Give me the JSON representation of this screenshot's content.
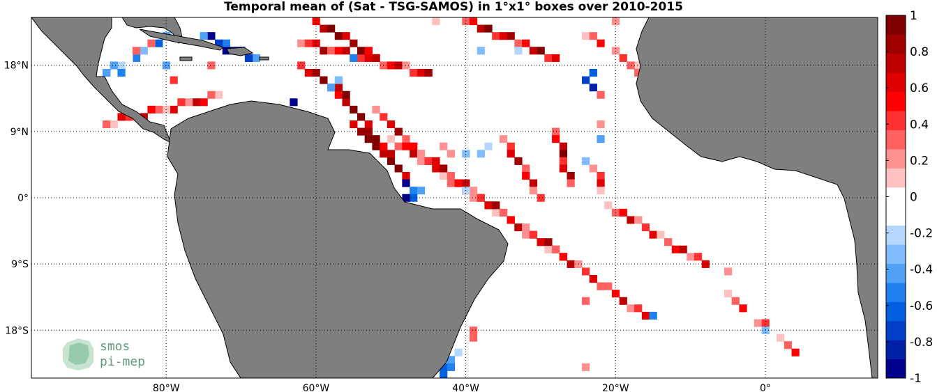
{
  "title": "Temporal mean of (Sat - TSG-SAMOS) in 1°x1° boxes over 2010-2015",
  "map": {
    "lon_range": [
      -98,
      15
    ],
    "lat_range": [
      -24.5,
      24.5
    ],
    "grid": true,
    "land_color": "#7f7f7f",
    "ocean_color": "#ffffff"
  },
  "axes": {
    "x_ticks": [
      {
        "value": -80,
        "label": "80°W"
      },
      {
        "value": -60,
        "label": "60°W"
      },
      {
        "value": -40,
        "label": "40°W"
      },
      {
        "value": -20,
        "label": "20°W"
      },
      {
        "value": 0,
        "label": "0°"
      }
    ],
    "y_ticks": [
      {
        "value": 18,
        "label": "18°N"
      },
      {
        "value": 9,
        "label": "9°N"
      },
      {
        "value": 0,
        "label": "0°"
      },
      {
        "value": -9,
        "label": "9°S"
      },
      {
        "value": -18,
        "label": "18°S"
      }
    ]
  },
  "colorbar": {
    "range": [
      -1,
      1
    ],
    "ticks": [
      "1",
      "0.8",
      "0.6",
      "0.4",
      "0.2",
      "0",
      "-0.2",
      "-0.4",
      "-0.6",
      "-0.8",
      "-1"
    ],
    "colors": [
      "#00008f",
      "#0020a8",
      "#0040c8",
      "#0060e0",
      "#2080f0",
      "#50a0f8",
      "#80bcfb",
      "#b5d6fd",
      "#ffffff",
      "#ffffff",
      "#ffc0c0",
      "#ff9090",
      "#ff6060",
      "#ff3030",
      "#ff0000",
      "#e00000",
      "#c00000",
      "#a00000",
      "#800000"
    ]
  },
  "logo": {
    "line1": "smos",
    "line2": "pi-mep"
  },
  "chart_data": {
    "type": "heatmap",
    "title": "Temporal mean of (Sat - TSG-SAMOS) in 1°x1° boxes over 2010-2015",
    "value_range": [
      -1,
      1
    ],
    "cell_size_deg": 1,
    "tracks": [
      {
        "points": [
          [
            -55,
            10
          ],
          [
            -48,
            3
          ]
        ],
        "value": 0.9
      },
      {
        "points": [
          [
            -57,
            14
          ],
          [
            -50,
            6
          ]
        ],
        "value": 0.85
      },
      {
        "points": [
          [
            -52,
            12
          ],
          [
            -44,
            4
          ]
        ],
        "value": 0.5
      },
      {
        "points": [
          [
            -50,
            8
          ],
          [
            -27,
            -8
          ]
        ],
        "value": 0.45
      },
      {
        "points": [
          [
            -46,
            6
          ],
          [
            -16,
            -16
          ]
        ],
        "value": 0.55
      },
      {
        "points": [
          [
            -21,
            -1
          ],
          [
            -8,
            -9
          ]
        ],
        "value": 0.4
      },
      {
        "points": [
          [
            -6,
            -12
          ],
          [
            5,
            -22
          ]
        ],
        "value": 0.25
      },
      {
        "points": [
          [
            -35,
            8
          ],
          [
            -30,
            0
          ]
        ],
        "value": 0.5
      },
      {
        "points": [
          [
            -28,
            9
          ],
          [
            -26,
            2
          ]
        ],
        "value": 0.6
      },
      {
        "points": [
          [
            -23,
            5
          ],
          [
            -22,
            1
          ]
        ],
        "value": 0.3
      },
      {
        "points": [
          [
            -38,
            -5
          ],
          [
            -41,
            -14
          ]
        ],
        "value": 0.35
      },
      {
        "points": [
          [
            -40,
            -20
          ],
          [
            -44,
            -24
          ]
        ],
        "value": -0.35
      },
      {
        "points": [
          [
            -73,
            14
          ],
          [
            -88,
            10
          ]
        ],
        "value": 0.45
      },
      {
        "points": [
          [
            -62,
            21
          ],
          [
            -45,
            17
          ]
        ],
        "value": 0.5
      },
      {
        "points": [
          [
            -40,
            24
          ],
          [
            -28,
            19
          ]
        ],
        "value": 0.6
      },
      {
        "points": [
          [
            -25,
            23
          ],
          [
            -16,
            17
          ]
        ],
        "value": 0.2
      },
      {
        "points": [
          [
            -60,
            24
          ],
          [
            -52,
            19
          ]
        ],
        "value": 0.8
      },
      {
        "points": [
          [
            -68,
            19
          ],
          [
            -75,
            22
          ]
        ],
        "value": -0.7
      },
      {
        "points": [
          [
            -78,
            23
          ],
          [
            -88,
            17
          ]
        ],
        "value": -0.3
      },
      {
        "points": [
          [
            -62,
            18
          ],
          [
            -56,
            14
          ]
        ],
        "value": 0.7
      }
    ],
    "cells": [
      {
        "lon": -48,
        "lat": 2,
        "value": -0.9
      },
      {
        "lon": -47,
        "lat": 1,
        "value": -0.5
      },
      {
        "lon": -47,
        "lat": 0,
        "value": -0.6
      },
      {
        "lon": -48,
        "lat": 0,
        "value": -0.95
      },
      {
        "lon": -46,
        "lat": 1,
        "value": -0.4
      },
      {
        "lon": -24,
        "lat": 16,
        "value": -0.7
      },
      {
        "lon": -23,
        "lat": 15,
        "value": -0.8
      },
      {
        "lon": -23,
        "lat": 17,
        "value": -0.6
      },
      {
        "lon": -15,
        "lat": -16,
        "value": -0.55
      },
      {
        "lon": 0,
        "lat": -18,
        "value": -0.3
      },
      {
        "lon": -38,
        "lat": 6,
        "value": -0.3
      },
      {
        "lon": -37,
        "lat": 7,
        "value": -0.2
      },
      {
        "lon": -63,
        "lat": 13,
        "value": -0.95
      },
      {
        "lon": -58,
        "lat": 15,
        "value": -0.4
      },
      {
        "lon": -57,
        "lat": 16,
        "value": -0.3
      },
      {
        "lon": -72,
        "lat": 20,
        "value": -0.9
      },
      {
        "lon": -70,
        "lat": 20,
        "value": -0.85
      },
      {
        "lon": -69,
        "lat": 19,
        "value": -0.7
      },
      {
        "lon": -55,
        "lat": 19,
        "value": -0.5
      },
      {
        "lon": -38,
        "lat": 20,
        "value": -0.3
      },
      {
        "lon": -33,
        "lat": 20,
        "value": -0.2
      },
      {
        "lon": -40,
        "lat": 1,
        "value": -0.2
      },
      {
        "lon": -22,
        "lat": 8,
        "value": -0.4
      },
      {
        "lon": -24,
        "lat": 5,
        "value": -0.3
      },
      {
        "lon": -40,
        "lat": 6,
        "value": -0.35
      },
      {
        "lon": -86,
        "lat": 17,
        "value": -0.5
      },
      {
        "lon": -88,
        "lat": 17,
        "value": -0.4
      },
      {
        "lon": -80,
        "lat": 18,
        "value": -0.45
      },
      {
        "lon": -42,
        "lat": -23,
        "value": -0.5
      },
      {
        "lon": -43,
        "lat": -24,
        "value": -0.6
      },
      {
        "lon": -22,
        "lat": -12,
        "value": 0.3
      },
      {
        "lon": -24,
        "lat": -14,
        "value": 0.35
      },
      {
        "lon": -36,
        "lat": -5,
        "value": 0.3
      },
      {
        "lon": -44,
        "lat": -2,
        "value": 0.25
      },
      {
        "lon": -22,
        "lat": 14,
        "value": 0.3
      },
      {
        "lon": -22,
        "lat": 10,
        "value": 0.2
      },
      {
        "lon": -17,
        "lat": 17,
        "value": 0.35
      },
      {
        "lon": -18,
        "lat": 18,
        "value": 0.3
      },
      {
        "lon": -20,
        "lat": 24,
        "value": 0.2
      },
      {
        "lon": -44,
        "lat": 24,
        "value": 0.15
      },
      {
        "lon": -43,
        "lat": 7,
        "value": 0.2
      },
      {
        "lon": -42,
        "lat": 6,
        "value": 0.25
      },
      {
        "lon": -5,
        "lat": -10,
        "value": 0.2
      },
      {
        "lon": -39,
        "lat": -18,
        "value": 0.3
      },
      {
        "lon": -39,
        "lat": -19,
        "value": 0.3
      },
      {
        "lon": -24,
        "lat": -23,
        "value": 0.2
      },
      {
        "lon": -79,
        "lat": 16,
        "value": 0.45
      },
      {
        "lon": -74,
        "lat": 18,
        "value": 0.35
      },
      {
        "lon": -84,
        "lat": 20,
        "value": 0.3
      },
      {
        "lon": -82,
        "lat": 21,
        "value": 0.35
      }
    ]
  }
}
